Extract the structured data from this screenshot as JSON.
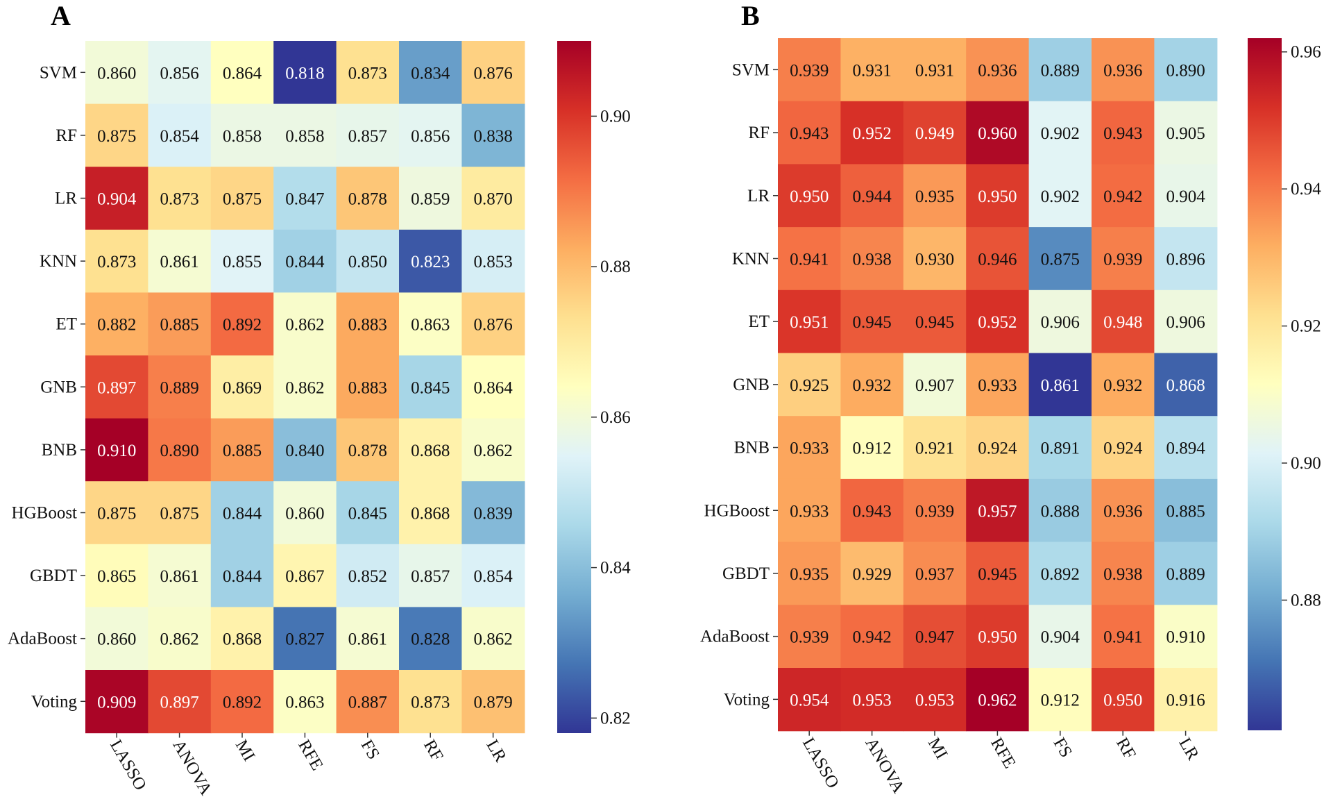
{
  "chart_data": [
    {
      "type": "heatmap",
      "panel_label": "A",
      "rows": [
        "SVM",
        "RF",
        "LR",
        "KNN",
        "ET",
        "GNB",
        "BNB",
        "HGBoost",
        "GBDT",
        "AdaBoost",
        "Voting"
      ],
      "columns": [
        "LASSO",
        "ANOVA",
        "MI",
        "RFE",
        "FS",
        "RF",
        "LR"
      ],
      "values": [
        [
          0.86,
          0.856,
          0.864,
          0.818,
          0.873,
          0.834,
          0.876
        ],
        [
          0.875,
          0.854,
          0.858,
          0.858,
          0.857,
          0.856,
          0.838
        ],
        [
          0.904,
          0.873,
          0.875,
          0.847,
          0.878,
          0.859,
          0.87
        ],
        [
          0.873,
          0.861,
          0.855,
          0.844,
          0.85,
          0.823,
          0.853
        ],
        [
          0.882,
          0.885,
          0.892,
          0.862,
          0.883,
          0.863,
          0.876
        ],
        [
          0.897,
          0.889,
          0.869,
          0.862,
          0.883,
          0.845,
          0.864
        ],
        [
          0.91,
          0.89,
          0.885,
          0.84,
          0.878,
          0.868,
          0.862
        ],
        [
          0.875,
          0.875,
          0.844,
          0.86,
          0.845,
          0.868,
          0.839
        ],
        [
          0.865,
          0.861,
          0.844,
          0.867,
          0.852,
          0.857,
          0.854
        ],
        [
          0.86,
          0.862,
          0.868,
          0.827,
          0.861,
          0.828,
          0.862
        ],
        [
          0.909,
          0.897,
          0.892,
          0.863,
          0.887,
          0.873,
          0.879
        ]
      ],
      "vmin": 0.818,
      "vmax": 0.91,
      "colormap": "RdYlBu_r",
      "colorbar_ticks": [
        0.82,
        0.84,
        0.86,
        0.88,
        0.9
      ],
      "colorbar_tick_labels": [
        "0.82",
        "0.84",
        "0.86",
        "0.88",
        "0.90"
      ]
    },
    {
      "type": "heatmap",
      "panel_label": "B",
      "rows": [
        "SVM",
        "RF",
        "LR",
        "KNN",
        "ET",
        "GNB",
        "BNB",
        "HGBoost",
        "GBDT",
        "AdaBoost",
        "Voting"
      ],
      "columns": [
        "LASSO",
        "ANOVA",
        "MI",
        "RFE",
        "FS",
        "RF",
        "LR"
      ],
      "values": [
        [
          0.939,
          0.931,
          0.931,
          0.936,
          0.889,
          0.936,
          0.89
        ],
        [
          0.943,
          0.952,
          0.949,
          0.96,
          0.902,
          0.943,
          0.905
        ],
        [
          0.95,
          0.944,
          0.935,
          0.95,
          0.902,
          0.942,
          0.904
        ],
        [
          0.941,
          0.938,
          0.93,
          0.946,
          0.875,
          0.939,
          0.896
        ],
        [
          0.951,
          0.945,
          0.945,
          0.952,
          0.906,
          0.948,
          0.906
        ],
        [
          0.925,
          0.932,
          0.907,
          0.933,
          0.861,
          0.932,
          0.868
        ],
        [
          0.933,
          0.912,
          0.921,
          0.924,
          0.891,
          0.924,
          0.894
        ],
        [
          0.933,
          0.943,
          0.939,
          0.957,
          0.888,
          0.936,
          0.885
        ],
        [
          0.935,
          0.929,
          0.937,
          0.945,
          0.892,
          0.938,
          0.889
        ],
        [
          0.939,
          0.942,
          0.947,
          0.95,
          0.904,
          0.941,
          0.91
        ],
        [
          0.954,
          0.953,
          0.953,
          0.962,
          0.912,
          0.95,
          0.916
        ]
      ],
      "vmin": 0.861,
      "vmax": 0.962,
      "colormap": "RdYlBu_r",
      "colorbar_ticks": [
        0.88,
        0.9,
        0.92,
        0.94,
        0.96
      ],
      "colorbar_tick_labels": [
        "0.88",
        "0.90",
        "0.92",
        "0.94",
        "0.96"
      ]
    }
  ]
}
